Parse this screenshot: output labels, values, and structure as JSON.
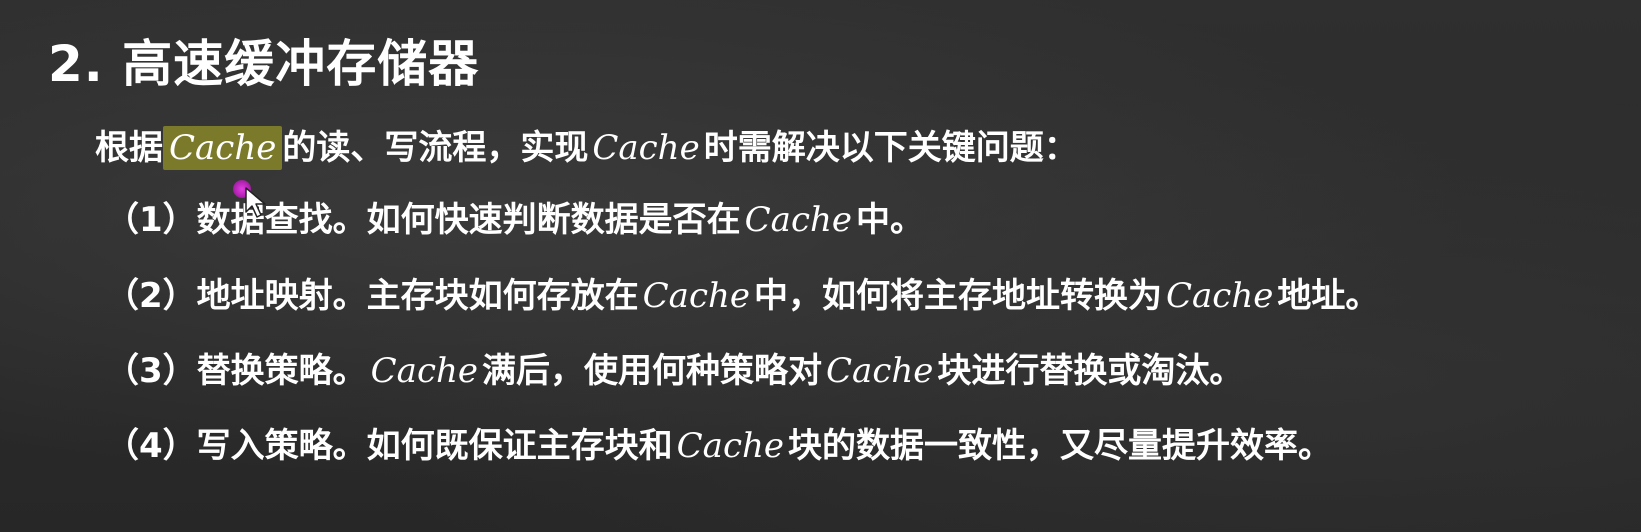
{
  "title": "2. 高速缓冲存储器",
  "intro": {
    "before": "根据",
    "term": "Cache",
    "after1": "的读、写流程，实现",
    "term2": "Cache",
    "after2": "时需解决以下关键问题："
  },
  "items": [
    {
      "prefix": "（1）数据查找。如何快速判断数据是否在",
      "term": "Cache",
      "suffix": "中。"
    },
    {
      "prefix": "（2）地址映射。主存块如何存放在",
      "term": "Cache",
      "middle": "中，如何将主存地址转换为",
      "term2": "Cache",
      "suffix": "地址。"
    },
    {
      "prefix": "（3）替换策略。",
      "term": "Cache",
      "middle": "满后，使用何种策略对",
      "term2": "Cache",
      "suffix": "块进行替换或淘汰。"
    },
    {
      "prefix": "（4）写入策略。如何既保证主存块和",
      "term": "Cache",
      "suffix": "块的数据一致性，又尽量提升效率。"
    }
  ],
  "colors": {
    "background": "#2b2b2b",
    "text": "#ffffff",
    "highlight": "#7a7a2a",
    "cursor": "#d030d0"
  },
  "icons": {
    "cursor": "mouse-pointer-icon",
    "highlight_dot": "laser-pointer-dot-icon"
  }
}
